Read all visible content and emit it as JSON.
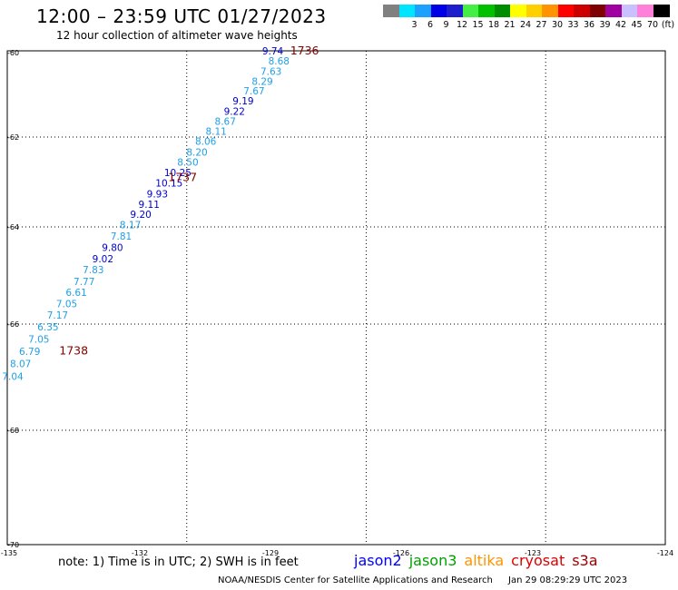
{
  "title": "12:00 – 23:59 UTC 01/27/2023",
  "subtitle": "12 hour collection of altimeter wave heights",
  "legend": {
    "unit": "(ft)",
    "bins": [
      {
        "label": "",
        "color": "#808080"
      },
      {
        "label": "3",
        "color": "#00e5ff"
      },
      {
        "label": "6",
        "color": "#1ea0ff"
      },
      {
        "label": "9",
        "color": "#0000e6"
      },
      {
        "label": "12",
        "color": "#1e1ecc"
      },
      {
        "label": "15",
        "color": "#44ee44"
      },
      {
        "label": "18",
        "color": "#00c000"
      },
      {
        "label": "21",
        "color": "#008c00"
      },
      {
        "label": "24",
        "color": "#ffff00"
      },
      {
        "label": "27",
        "color": "#ffd000"
      },
      {
        "label": "30",
        "color": "#ff9400"
      },
      {
        "label": "33",
        "color": "#ff0000"
      },
      {
        "label": "36",
        "color": "#cc0000"
      },
      {
        "label": "39",
        "color": "#7f0000"
      },
      {
        "label": "42",
        "color": "#a000a0"
      },
      {
        "label": "45",
        "color": "#c8c0ff"
      },
      {
        "label": "70",
        "color": "#ff80d8"
      },
      {
        "label": "",
        "color": "#000000"
      }
    ]
  },
  "map": {
    "lon_range": [
      -135,
      -124
    ],
    "lat_range": [
      -70,
      -60
    ],
    "lon_ticks": [
      {
        "v": -135,
        "label": "-135"
      },
      {
        "v": -132,
        "label": "-132"
      },
      {
        "v": -129,
        "label": "-129"
      },
      {
        "v": -126,
        "label": "-126"
      },
      {
        "v": -123,
        "label": "-123"
      },
      {
        "v": -124,
        "label": "-124"
      }
    ],
    "lat_ticks": [
      {
        "v": -60,
        "label": "-60"
      },
      {
        "v": -62,
        "label": "-62"
      },
      {
        "v": -64,
        "label": "-64"
      },
      {
        "v": -66,
        "label": "-66"
      },
      {
        "v": -68,
        "label": "-68"
      },
      {
        "v": -70,
        "label": "-70"
      }
    ],
    "grid_lons": [
      -132,
      -129,
      -126,
      -123
    ],
    "grid_lats": [
      -62,
      -64,
      -66,
      -68
    ],
    "grid": "dotted"
  },
  "chart_data": {
    "type": "scatter",
    "x_axis": "longitude",
    "y_axis": "latitude",
    "points": [
      {
        "lon": -129.03,
        "lat": -60.0,
        "swh": "9.74",
        "color": "#0000cc"
      },
      {
        "lon": -128.89,
        "lat": -60.23,
        "swh": "8.68",
        "color": "#1ea0e6"
      },
      {
        "lon": -129.07,
        "lat": -60.47,
        "swh": "7.63",
        "color": "#1ea0e6"
      },
      {
        "lon": -129.27,
        "lat": -60.7,
        "swh": "8.29",
        "color": "#1ea0e6"
      },
      {
        "lon": -129.46,
        "lat": -60.93,
        "swh": "7.67",
        "color": "#1ea0e6"
      },
      {
        "lon": -129.71,
        "lat": -61.16,
        "swh": "9.19",
        "color": "#0000cc"
      },
      {
        "lon": -129.91,
        "lat": -61.4,
        "swh": "9.22",
        "color": "#0000cc"
      },
      {
        "lon": -130.12,
        "lat": -61.63,
        "swh": "8.67",
        "color": "#1ea0e6"
      },
      {
        "lon": -130.33,
        "lat": -61.86,
        "swh": "8.11",
        "color": "#1ea0e6"
      },
      {
        "lon": -130.57,
        "lat": -62.09,
        "swh": "8.06",
        "color": "#1ea0e6"
      },
      {
        "lon": -130.77,
        "lat": -62.33,
        "swh": "8.20",
        "color": "#1ea0e6"
      },
      {
        "lon": -130.98,
        "lat": -62.56,
        "swh": "8.50",
        "color": "#1ea0e6"
      },
      {
        "lon": -131.21,
        "lat": -62.79,
        "swh": "10.25",
        "color": "#0000cc"
      },
      {
        "lon": -131.41,
        "lat": -63.02,
        "swh": "10.15",
        "color": "#0000cc"
      },
      {
        "lon": -131.68,
        "lat": -63.26,
        "swh": "9.93",
        "color": "#0000cc"
      },
      {
        "lon": -131.87,
        "lat": -63.49,
        "swh": "9.11",
        "color": "#0000cc"
      },
      {
        "lon": -132.06,
        "lat": -63.72,
        "swh": "9.20",
        "color": "#0000cc"
      },
      {
        "lon": -132.3,
        "lat": -63.95,
        "swh": "8.17",
        "color": "#1ea0e6"
      },
      {
        "lon": -132.51,
        "lat": -64.19,
        "swh": "7.81",
        "color": "#1ea0e6"
      },
      {
        "lon": -132.71,
        "lat": -64.42,
        "swh": "9.80",
        "color": "#0000cc"
      },
      {
        "lon": -132.93,
        "lat": -64.65,
        "swh": "9.02",
        "color": "#0000cc"
      },
      {
        "lon": -133.15,
        "lat": -64.88,
        "swh": "7.83",
        "color": "#1ea0e6"
      },
      {
        "lon": -133.36,
        "lat": -65.12,
        "swh": "7.77",
        "color": "#1ea0e6"
      },
      {
        "lon": -133.54,
        "lat": -65.35,
        "swh": "6.61",
        "color": "#1ea0e6"
      },
      {
        "lon": -133.76,
        "lat": -65.58,
        "swh": "7.05",
        "color": "#1ea0e6"
      },
      {
        "lon": -133.97,
        "lat": -65.81,
        "swh": "7.17",
        "color": "#1ea0e6"
      },
      {
        "lon": -134.19,
        "lat": -66.05,
        "swh": "6.35",
        "color": "#1ea0e6"
      },
      {
        "lon": -134.4,
        "lat": -66.28,
        "swh": "7.05",
        "color": "#1ea0e6"
      },
      {
        "lon": -134.61,
        "lat": -66.51,
        "swh": "6.79",
        "color": "#1ea0e6"
      },
      {
        "lon": -134.82,
        "lat": -66.74,
        "swh": "8.07",
        "color": "#1ea0e6"
      },
      {
        "lon": -135.0,
        "lat": -66.98,
        "swh": "7.04",
        "color": "#1ea0e6"
      }
    ],
    "time_labels": [
      {
        "lon": -128.3,
        "lat": -60.0,
        "text": "1736"
      },
      {
        "lon": -131.1,
        "lat": -62.9,
        "text": "1737"
      },
      {
        "lon": -133.6,
        "lat": -66.5,
        "text": "1738"
      }
    ],
    "time_label_color": "#800000"
  },
  "notes": "note:  1) Time is in UTC;  2) SWH is in feet",
  "satellites": [
    {
      "name": "jason2",
      "color": "#0000ff"
    },
    {
      "name": "jason3",
      "color": "#00a000"
    },
    {
      "name": "altika",
      "color": "#ff9400"
    },
    {
      "name": "cryosat",
      "color": "#e00000"
    },
    {
      "name": "s3a",
      "color": "#a00000"
    }
  ],
  "credit": "NOAA/NESDIS Center for Satellite Applications and Research",
  "timestamp": "Jan 29 08:29:29 UTC 2023"
}
